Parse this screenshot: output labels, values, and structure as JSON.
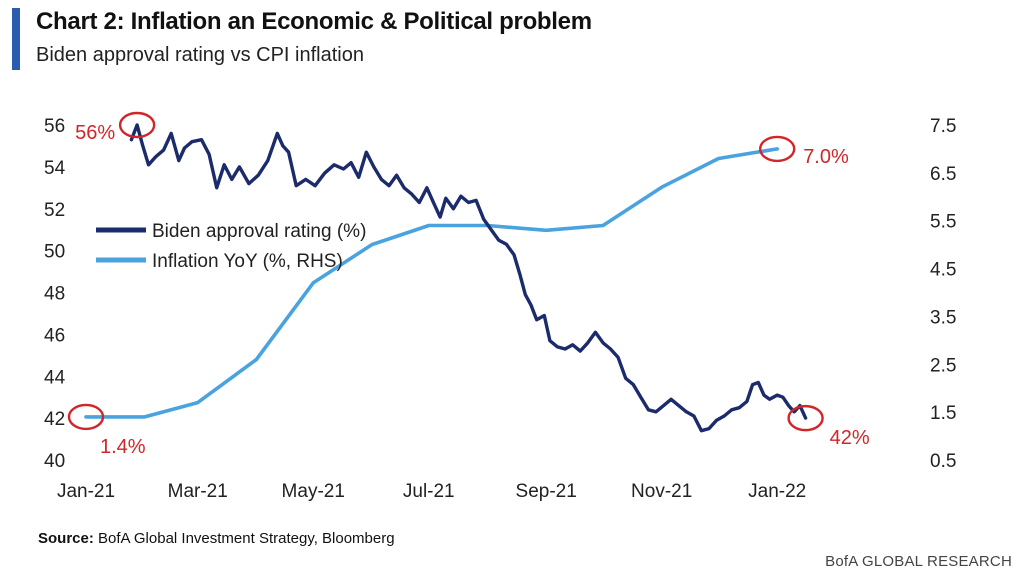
{
  "header": {
    "title": "Chart 2: Inflation an Economic & Political problem",
    "subtitle": "Biden approval rating vs CPI inflation"
  },
  "footer": {
    "source_label": "Source:",
    "source_text": "BofA Global Investment Strategy, Bloomberg",
    "brand": "BofA GLOBAL RESEARCH"
  },
  "colors": {
    "approval": "#1b2b6b",
    "inflation": "#4aa3df",
    "annotation": "#d0262a",
    "accent": "#2a5db0"
  },
  "chart_data": {
    "type": "line",
    "title": "Chart 2: Inflation an Economic & Political problem",
    "subtitle": "Biden approval rating vs CPI inflation",
    "x_ticks": [
      "Jan-21",
      "Mar-21",
      "May-21",
      "Jul-21",
      "Sep-21",
      "Nov-21",
      "Jan-22"
    ],
    "x_range": [
      "2021-01-01",
      "2022-01-31"
    ],
    "y_left": {
      "min": 40,
      "max": 56,
      "ticks": [
        "40",
        "42",
        "44",
        "46",
        "48",
        "50",
        "52",
        "54",
        "56"
      ]
    },
    "y_right": {
      "min": 0.5,
      "max": 7.5,
      "ticks": [
        "0.5",
        "1.5",
        "2.5",
        "3.5",
        "4.5",
        "5.5",
        "6.5",
        "7.5"
      ]
    },
    "legend_position": "middle-left",
    "series": [
      {
        "name": "Biden approval rating (%)",
        "axis": "left",
        "points": [
          [
            "2021-01-25",
            55.3
          ],
          [
            "2021-01-28",
            56.0
          ],
          [
            "2021-01-31",
            55.0
          ],
          [
            "2021-02-03",
            54.1
          ],
          [
            "2021-02-07",
            54.5
          ],
          [
            "2021-02-11",
            54.8
          ],
          [
            "2021-02-15",
            55.6
          ],
          [
            "2021-02-19",
            54.3
          ],
          [
            "2021-02-22",
            54.9
          ],
          [
            "2021-02-26",
            55.2
          ],
          [
            "2021-03-03",
            55.3
          ],
          [
            "2021-03-07",
            54.6
          ],
          [
            "2021-03-11",
            53.0
          ],
          [
            "2021-03-15",
            54.1
          ],
          [
            "2021-03-19",
            53.4
          ],
          [
            "2021-03-23",
            54.0
          ],
          [
            "2021-03-28",
            53.2
          ],
          [
            "2021-04-02",
            53.6
          ],
          [
            "2021-04-07",
            54.3
          ],
          [
            "2021-04-12",
            55.6
          ],
          [
            "2021-04-15",
            55.0
          ],
          [
            "2021-04-18",
            54.7
          ],
          [
            "2021-04-22",
            53.1
          ],
          [
            "2021-04-27",
            53.4
          ],
          [
            "2021-05-02",
            53.1
          ],
          [
            "2021-05-07",
            53.7
          ],
          [
            "2021-05-12",
            54.1
          ],
          [
            "2021-05-17",
            53.9
          ],
          [
            "2021-05-21",
            54.2
          ],
          [
            "2021-05-25",
            53.5
          ],
          [
            "2021-05-29",
            54.7
          ],
          [
            "2021-06-02",
            54.0
          ],
          [
            "2021-06-06",
            53.4
          ],
          [
            "2021-06-10",
            53.1
          ],
          [
            "2021-06-14",
            53.6
          ],
          [
            "2021-06-18",
            53.0
          ],
          [
            "2021-06-22",
            52.7
          ],
          [
            "2021-06-26",
            52.3
          ],
          [
            "2021-06-30",
            53.0
          ],
          [
            "2021-07-03",
            52.4
          ],
          [
            "2021-07-07",
            51.6
          ],
          [
            "2021-07-10",
            52.5
          ],
          [
            "2021-07-14",
            52.0
          ],
          [
            "2021-07-18",
            52.6
          ],
          [
            "2021-07-22",
            52.3
          ],
          [
            "2021-07-26",
            52.4
          ],
          [
            "2021-07-30",
            51.5
          ],
          [
            "2021-08-03",
            51.0
          ],
          [
            "2021-08-07",
            50.5
          ],
          [
            "2021-08-11",
            50.3
          ],
          [
            "2021-08-15",
            49.8
          ],
          [
            "2021-08-18",
            48.9
          ],
          [
            "2021-08-21",
            47.9
          ],
          [
            "2021-08-24",
            47.4
          ],
          [
            "2021-08-27",
            46.7
          ],
          [
            "2021-08-31",
            46.9
          ],
          [
            "2021-09-03",
            45.7
          ],
          [
            "2021-09-07",
            45.4
          ],
          [
            "2021-09-11",
            45.3
          ],
          [
            "2021-09-15",
            45.5
          ],
          [
            "2021-09-19",
            45.2
          ],
          [
            "2021-09-23",
            45.6
          ],
          [
            "2021-09-27",
            46.1
          ],
          [
            "2021-10-01",
            45.6
          ],
          [
            "2021-10-05",
            45.3
          ],
          [
            "2021-10-09",
            44.9
          ],
          [
            "2021-10-13",
            43.9
          ],
          [
            "2021-10-17",
            43.6
          ],
          [
            "2021-10-21",
            43.0
          ],
          [
            "2021-10-25",
            42.4
          ],
          [
            "2021-10-29",
            42.3
          ],
          [
            "2021-11-02",
            42.6
          ],
          [
            "2021-11-06",
            42.9
          ],
          [
            "2021-11-10",
            42.6
          ],
          [
            "2021-11-14",
            42.3
          ],
          [
            "2021-11-18",
            42.1
          ],
          [
            "2021-11-22",
            41.4
          ],
          [
            "2021-11-26",
            41.5
          ],
          [
            "2021-11-30",
            41.9
          ],
          [
            "2021-12-04",
            42.1
          ],
          [
            "2021-12-08",
            42.4
          ],
          [
            "2021-12-12",
            42.5
          ],
          [
            "2021-12-16",
            42.8
          ],
          [
            "2021-12-19",
            43.6
          ],
          [
            "2021-12-22",
            43.7
          ],
          [
            "2021-12-25",
            43.1
          ],
          [
            "2021-12-28",
            42.9
          ],
          [
            "2022-01-01",
            43.1
          ],
          [
            "2022-01-04",
            43.0
          ],
          [
            "2022-01-07",
            42.6
          ],
          [
            "2022-01-10",
            42.3
          ],
          [
            "2022-01-13",
            42.6
          ],
          [
            "2022-01-16",
            42.0
          ]
        ]
      },
      {
        "name": "Inflation YoY (%, RHS)",
        "axis": "right",
        "points": [
          [
            "2021-01-01",
            1.4
          ],
          [
            "2021-02-01",
            1.4
          ],
          [
            "2021-03-01",
            1.7
          ],
          [
            "2021-04-01",
            2.6
          ],
          [
            "2021-05-01",
            4.2
          ],
          [
            "2021-06-01",
            5.0
          ],
          [
            "2021-07-01",
            5.4
          ],
          [
            "2021-08-01",
            5.4
          ],
          [
            "2021-09-01",
            5.3
          ],
          [
            "2021-10-01",
            5.4
          ],
          [
            "2021-11-01",
            6.2
          ],
          [
            "2021-12-01",
            6.8
          ],
          [
            "2022-01-01",
            7.0
          ]
        ]
      }
    ],
    "annotations": [
      {
        "label": "56%",
        "series": "Biden approval rating (%)",
        "x": "2021-01-28",
        "y": 56.0,
        "axis": "left"
      },
      {
        "label": "42%",
        "series": "Biden approval rating (%)",
        "x": "2022-01-16",
        "y": 42.0,
        "axis": "left"
      },
      {
        "label": "1.4%",
        "series": "Inflation YoY (%, RHS)",
        "x": "2021-01-01",
        "y": 1.4,
        "axis": "right"
      },
      {
        "label": "7.0%",
        "series": "Inflation YoY (%, RHS)",
        "x": "2022-01-01",
        "y": 7.0,
        "axis": "right"
      }
    ]
  }
}
